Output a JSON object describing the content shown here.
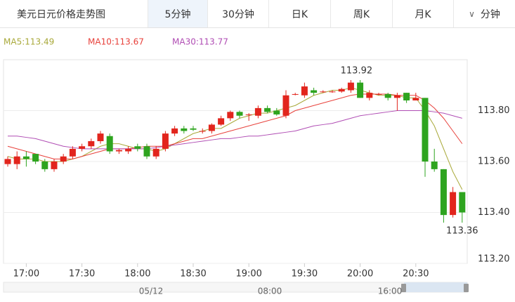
{
  "tabs": {
    "title": "美元日元价格走势图",
    "items": [
      "5分钟",
      "30分钟",
      "日K",
      "周K",
      "月K"
    ],
    "active": 0,
    "dropdown": "分钟"
  },
  "chart_data": {
    "type": "candlestick",
    "ylim": [
      113.2,
      114.0
    ],
    "yticks": [
      {
        "value": 113.2,
        "label": "113.20"
      },
      {
        "value": 113.4,
        "label": "113.40"
      },
      {
        "value": 113.6,
        "label": "113.60"
      },
      {
        "value": 113.8,
        "label": "113.80"
      }
    ],
    "grid": true,
    "up_color": "#e2251d",
    "down_color": "#2ea41f",
    "categories": [
      null,
      null,
      "17:00",
      null,
      null,
      null,
      null,
      null,
      "17:30",
      null,
      null,
      null,
      null,
      null,
      "18:00",
      null,
      null,
      null,
      null,
      null,
      "18:30",
      null,
      null,
      null,
      null,
      null,
      "19:00",
      null,
      null,
      null,
      null,
      null,
      "19:30",
      null,
      null,
      null,
      null,
      null,
      "20:00",
      null,
      null,
      null,
      null,
      null,
      "20:30",
      null,
      null,
      null,
      null,
      null
    ],
    "open": [
      113.59,
      113.59,
      113.62,
      113.63,
      113.6,
      113.57,
      113.6,
      113.62,
      113.65,
      113.66,
      113.68,
      113.7,
      113.64,
      113.64,
      113.66,
      113.66,
      113.62,
      113.65,
      113.71,
      113.73,
      113.73,
      113.72,
      113.72,
      113.745,
      113.77,
      113.795,
      113.785,
      113.78,
      113.81,
      113.8,
      113.78,
      113.865,
      113.86,
      113.88,
      113.875,
      113.875,
      113.875,
      113.88,
      113.91,
      113.85,
      113.865,
      113.865,
      113.85,
      113.87,
      113.84,
      113.85,
      113.6,
      113.57,
      113.39,
      113.48
    ],
    "high": [
      113.62,
      113.64,
      113.64,
      113.63,
      113.61,
      113.61,
      113.63,
      113.66,
      113.67,
      113.69,
      113.72,
      113.71,
      113.65,
      113.66,
      113.67,
      113.67,
      113.66,
      113.72,
      113.74,
      113.74,
      113.74,
      113.73,
      113.75,
      113.78,
      113.8,
      113.8,
      113.79,
      113.82,
      113.82,
      113.81,
      113.88,
      113.87,
      113.91,
      113.89,
      113.88,
      113.88,
      113.89,
      113.92,
      113.92,
      113.88,
      113.87,
      113.87,
      113.87,
      113.87,
      113.87,
      113.85,
      113.65,
      113.57,
      113.5,
      113.48
    ],
    "low": [
      113.58,
      113.57,
      113.58,
      113.59,
      113.56,
      113.56,
      113.59,
      113.61,
      113.64,
      113.65,
      113.67,
      113.63,
      113.63,
      113.63,
      113.64,
      113.61,
      113.61,
      113.64,
      113.7,
      113.71,
      113.72,
      113.71,
      113.71,
      113.74,
      113.76,
      113.77,
      113.76,
      113.77,
      113.79,
      113.78,
      113.77,
      113.86,
      113.85,
      113.86,
      113.87,
      113.87,
      113.87,
      113.87,
      113.85,
      113.84,
      113.86,
      113.84,
      113.8,
      113.83,
      113.84,
      113.54,
      113.56,
      113.36,
      113.38,
      113.36
    ],
    "close": [
      113.61,
      113.62,
      113.61,
      113.6,
      113.57,
      113.6,
      113.62,
      113.65,
      113.66,
      113.68,
      113.71,
      113.64,
      113.645,
      113.65,
      113.65,
      113.62,
      113.65,
      113.71,
      113.73,
      113.72,
      113.725,
      113.72,
      113.745,
      113.77,
      113.795,
      113.78,
      113.785,
      113.81,
      113.795,
      113.785,
      113.86,
      113.865,
      113.895,
      113.87,
      113.875,
      113.875,
      113.885,
      113.91,
      113.85,
      113.87,
      113.865,
      113.85,
      113.86,
      113.84,
      113.85,
      113.6,
      113.57,
      113.39,
      113.48,
      113.4
    ],
    "series": [
      {
        "name": "MA5:113.49",
        "color": "#a9a93a",
        "values": [
          113.62,
          113.61,
          113.61,
          113.61,
          113.6,
          113.6,
          113.6,
          113.61,
          113.62,
          113.64,
          113.66,
          113.67,
          113.67,
          113.66,
          113.65,
          113.65,
          113.64,
          113.65,
          113.67,
          113.69,
          113.71,
          113.72,
          113.73,
          113.73,
          113.75,
          113.77,
          113.78,
          113.79,
          113.79,
          113.8,
          113.81,
          113.82,
          113.84,
          113.86,
          113.87,
          113.88,
          113.88,
          113.89,
          113.88,
          113.87,
          113.86,
          113.86,
          113.86,
          113.85,
          113.85,
          113.8,
          113.74,
          113.65,
          113.56,
          113.49
        ]
      },
      {
        "name": "MA10:113.67",
        "color": "#e8413b",
        "values": [
          113.66,
          113.65,
          113.64,
          113.63,
          113.62,
          113.61,
          113.61,
          113.61,
          113.62,
          113.63,
          113.64,
          113.65,
          113.65,
          113.65,
          113.655,
          113.66,
          113.66,
          113.66,
          113.67,
          113.68,
          113.69,
          113.69,
          113.7,
          113.71,
          113.72,
          113.73,
          113.74,
          113.75,
          113.76,
          113.77,
          113.78,
          113.8,
          113.81,
          113.82,
          113.83,
          113.84,
          113.85,
          113.86,
          113.865,
          113.865,
          113.865,
          113.865,
          113.86,
          113.86,
          113.86,
          113.84,
          113.81,
          113.77,
          113.72,
          113.67
        ]
      },
      {
        "name": "MA30:113.77",
        "color": "#b04db4",
        "values": [
          113.7,
          113.7,
          113.695,
          113.69,
          113.68,
          113.67,
          113.66,
          113.655,
          113.65,
          113.65,
          113.65,
          113.65,
          113.65,
          113.65,
          113.65,
          113.65,
          113.655,
          113.66,
          113.665,
          113.67,
          113.675,
          113.68,
          113.685,
          113.69,
          113.69,
          113.695,
          113.7,
          113.7,
          113.705,
          113.71,
          113.715,
          113.72,
          113.73,
          113.74,
          113.745,
          113.75,
          113.76,
          113.77,
          113.78,
          113.785,
          113.79,
          113.795,
          113.8,
          113.8,
          113.8,
          113.8,
          113.795,
          113.79,
          113.78,
          113.77
        ]
      }
    ],
    "annotations": [
      {
        "text": "113.92",
        "index": 37,
        "value": 113.92
      },
      {
        "text": "113.36",
        "index": 49,
        "value": 113.36
      }
    ],
    "navigator_labels": [
      "05/12",
      "08:00",
      "16:00"
    ]
  }
}
